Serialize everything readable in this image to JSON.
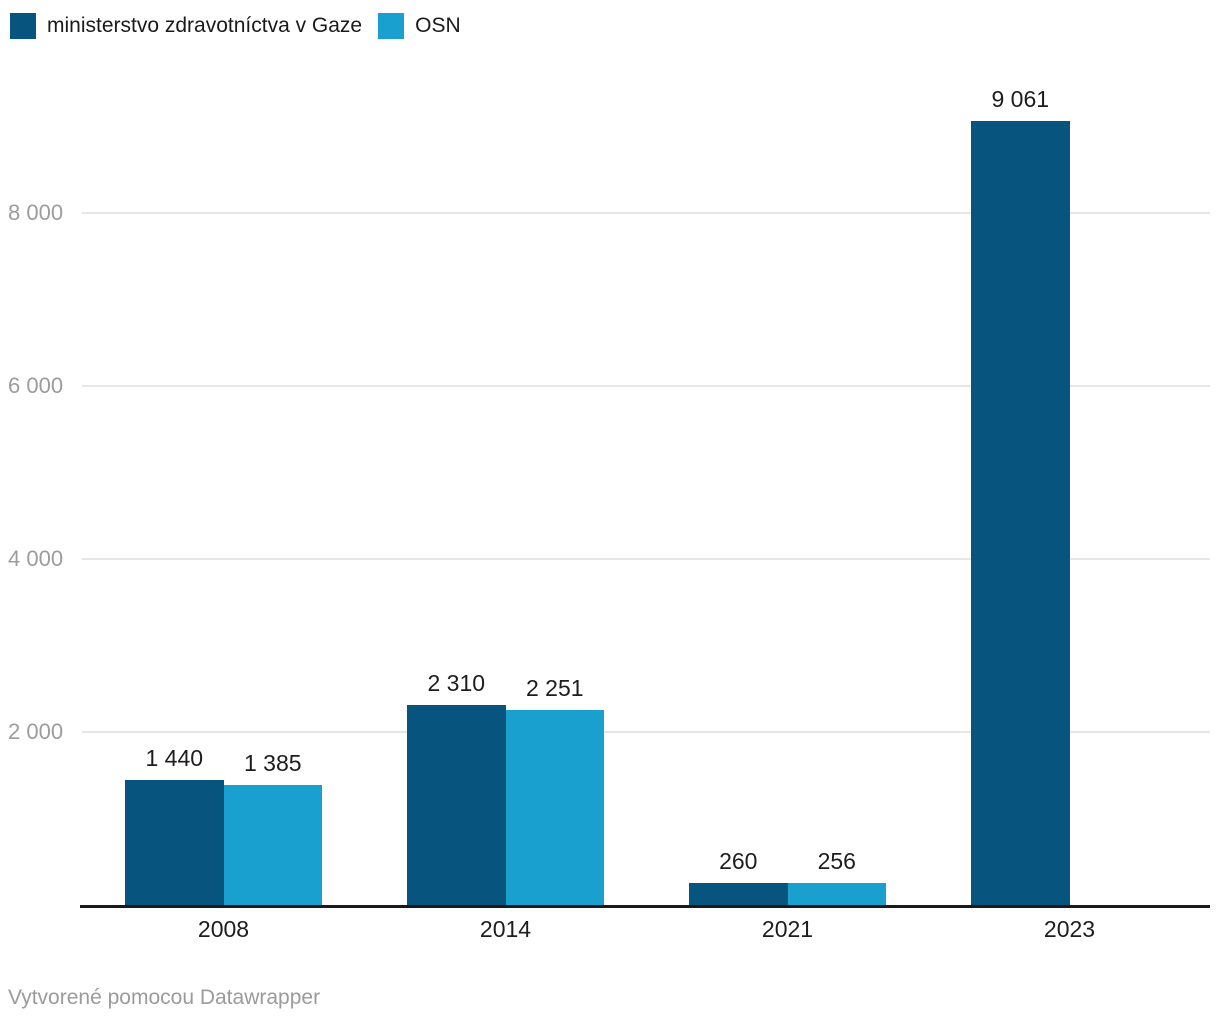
{
  "legend": {
    "items": [
      {
        "label": "ministerstvo zdravotníctva v Gaze",
        "color": "#07547e"
      },
      {
        "label": "OSN",
        "color": "#1aa0ce"
      }
    ]
  },
  "chart_data": {
    "type": "bar",
    "title": "",
    "xlabel": "",
    "ylabel": "",
    "categories": [
      "2008",
      "2014",
      "2021",
      "2023"
    ],
    "series": [
      {
        "name": "ministerstvo zdravotníctva v Gaze",
        "color": "#07547e",
        "values": [
          1440,
          2310,
          260,
          9061
        ],
        "value_labels": [
          "1 440",
          "2 310",
          "260",
          "9 061"
        ]
      },
      {
        "name": "OSN",
        "color": "#1aa0ce",
        "values": [
          1385,
          2251,
          256,
          null
        ],
        "value_labels": [
          "1 385",
          "2 251",
          "256",
          null
        ]
      }
    ],
    "ylim": [
      0,
      9250
    ],
    "yticks": [
      {
        "value": 2000,
        "label": "2 000"
      },
      {
        "value": 4000,
        "label": "4 000"
      },
      {
        "value": 6000,
        "label": "6 000"
      },
      {
        "value": 8000,
        "label": "8 000"
      }
    ],
    "grid": true,
    "legend_position": "top-left",
    "colors": {
      "grid": "#e6e6e6",
      "axis": "#1a1a1a",
      "tick_text": "#9c9c9c",
      "label_text": "#1d1d1d"
    }
  },
  "footer": {
    "text": "Vytvorené pomocou Datawrapper"
  }
}
